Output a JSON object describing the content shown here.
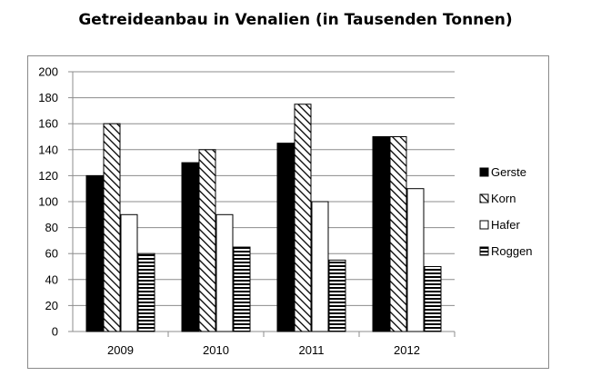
{
  "chart_data": {
    "type": "bar",
    "title": "Getreideanbau in Venalien (in Tausenden Tonnen)",
    "categories": [
      "2009",
      "2010",
      "2011",
      "2012"
    ],
    "series": [
      {
        "name": "Gerste",
        "values": [
          120,
          130,
          145,
          150
        ],
        "fill": "solid-black"
      },
      {
        "name": "Korn",
        "values": [
          160,
          140,
          175,
          150
        ],
        "fill": "diagonal-hatch"
      },
      {
        "name": "Hafer",
        "values": [
          90,
          90,
          100,
          110
        ],
        "fill": "white"
      },
      {
        "name": "Roggen",
        "values": [
          60,
          65,
          55,
          50
        ],
        "fill": "horizontal-stripes"
      }
    ],
    "ylim": [
      0,
      200
    ],
    "yticks": [
      0,
      20,
      40,
      60,
      80,
      100,
      120,
      140,
      160,
      180,
      200
    ],
    "grid": true,
    "legend_position": "right",
    "colors": {
      "ink": "#000000",
      "grid": "#8c8c8c",
      "background": "#ffffff"
    }
  }
}
